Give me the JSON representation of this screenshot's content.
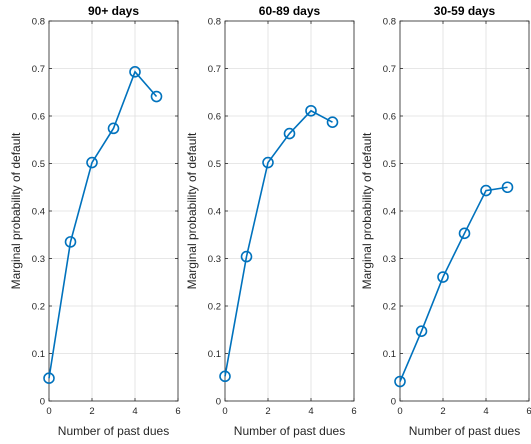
{
  "style": {
    "line_color": "#0072BD",
    "grid_color": "#DFDFDF",
    "axis_color": "#262626"
  },
  "chart_data": [
    {
      "type": "line",
      "title": "90+ days",
      "xlabel": "Number of past dues",
      "ylabel": "Marginal probability of default",
      "xlim": [
        0,
        6
      ],
      "ylim": [
        0,
        0.8
      ],
      "xticks": [
        "0",
        "2",
        "4",
        "6"
      ],
      "yticks": [
        "0",
        "0.1",
        "0.2",
        "0.3",
        "0.4",
        "0.5",
        "0.6",
        "0.7",
        "0.8"
      ],
      "grid": true,
      "marker": "circle",
      "x": [
        0,
        1,
        2,
        3,
        4,
        5
      ],
      "y": [
        0.048,
        0.335,
        0.502,
        0.574,
        0.693,
        0.641
      ]
    },
    {
      "type": "line",
      "title": "60-89 days",
      "xlabel": "Number of past dues",
      "ylabel": "Marginal probability of default",
      "xlim": [
        0,
        6
      ],
      "ylim": [
        0,
        0.8
      ],
      "xticks": [
        "0",
        "2",
        "4",
        "6"
      ],
      "yticks": [
        "0",
        "0.1",
        "0.2",
        "0.3",
        "0.4",
        "0.5",
        "0.6",
        "0.7",
        "0.8"
      ],
      "grid": true,
      "marker": "circle",
      "x": [
        0,
        1,
        2,
        3,
        4,
        5
      ],
      "y": [
        0.052,
        0.304,
        0.502,
        0.563,
        0.611,
        0.587
      ]
    },
    {
      "type": "line",
      "title": "30-59 days",
      "xlabel": "Number of past dues",
      "ylabel": "Marginal probability of default",
      "xlim": [
        0,
        6
      ],
      "ylim": [
        0,
        0.8
      ],
      "xticks": [
        "0",
        "2",
        "4",
        "6"
      ],
      "yticks": [
        "0",
        "0.1",
        "0.2",
        "0.3",
        "0.4",
        "0.5",
        "0.6",
        "0.7",
        "0.8"
      ],
      "grid": true,
      "marker": "circle",
      "x": [
        0,
        1,
        2,
        3,
        4,
        5
      ],
      "y": [
        0.041,
        0.147,
        0.261,
        0.353,
        0.443,
        0.45
      ]
    }
  ]
}
